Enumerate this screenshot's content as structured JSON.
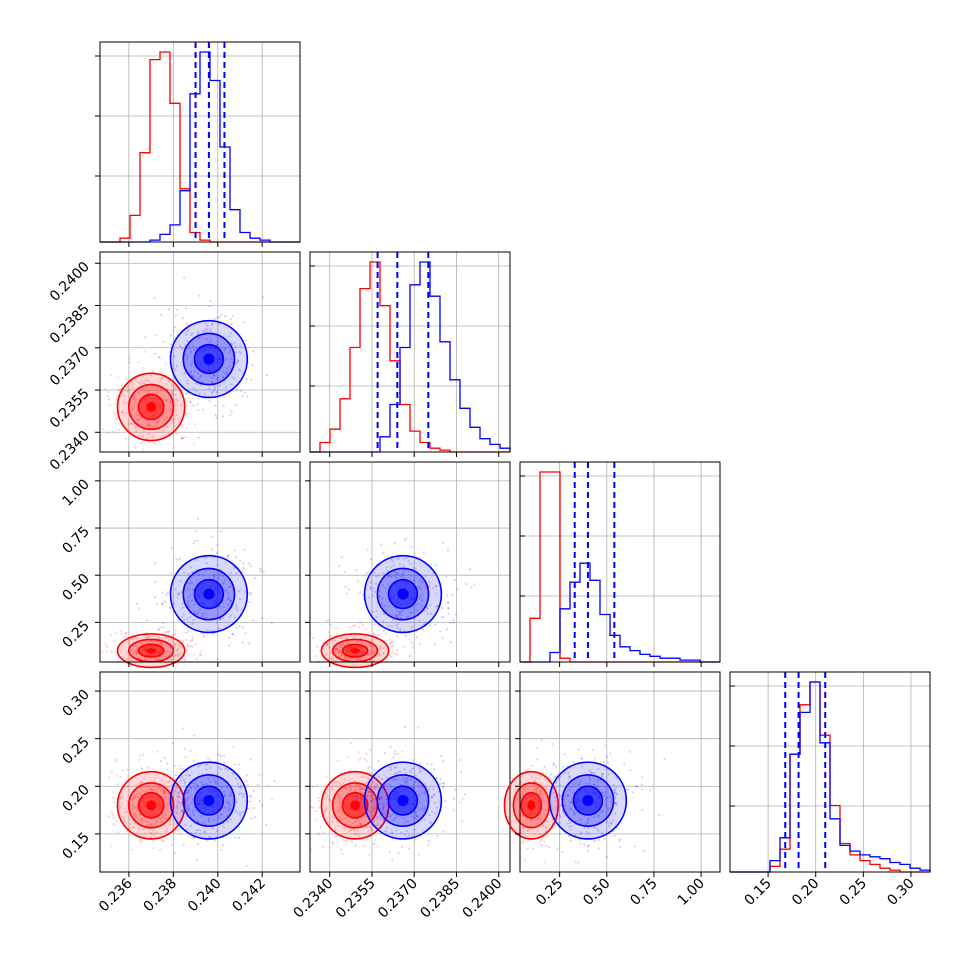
{
  "colors": {
    "series_a": "#ff0000",
    "series_b": "#0000ff",
    "grid": "#b0b0b0",
    "axis": "#000000"
  },
  "chart_data": {
    "type": "corner",
    "grid": true,
    "parameters": [
      {
        "ticks": [
          "0.236",
          "0.238",
          "0.240",
          "0.242"
        ],
        "tick_values": [
          0.236,
          0.238,
          0.24,
          0.242
        ],
        "range": [
          0.2347,
          0.2437
        ]
      },
      {
        "ticks": [
          "0.2340",
          "0.2355",
          "0.2370",
          "0.2385",
          "0.2400"
        ],
        "tick_values": [
          0.234,
          0.2355,
          0.237,
          0.2385,
          0.24
        ],
        "range": [
          0.2333,
          0.2404
        ]
      },
      {
        "ticks": [
          "0.25",
          "0.50",
          "0.75",
          "1.00"
        ],
        "tick_values": [
          0.25,
          0.5,
          0.75,
          1.0
        ],
        "range": [
          0.04,
          1.1
        ]
      },
      {
        "ticks": [
          "0.15",
          "0.20",
          "0.25",
          "0.30"
        ],
        "tick_values": [
          0.15,
          0.2,
          0.25,
          0.3
        ],
        "range": [
          0.11,
          0.32
        ]
      }
    ],
    "series": [
      {
        "color": "#ff0000",
        "centers": [
          0.237,
          0.2349,
          0.1,
          0.18
        ],
        "histograms": [
          [
            0,
            0,
            0.02,
            0.14,
            0.47,
            0.96,
            1.0,
            0.73,
            0.28,
            0.05,
            0.01,
            0,
            0,
            0,
            0,
            0,
            0,
            0,
            0,
            0
          ],
          [
            0,
            0.05,
            0.12,
            0.28,
            0.55,
            0.86,
            1.0,
            0.77,
            0.48,
            0.25,
            0.11,
            0.05,
            0.02,
            0.01,
            0,
            0,
            0,
            0,
            0,
            0
          ],
          [
            0,
            0.23,
            1.0,
            1.0,
            0.02,
            0,
            0,
            0,
            0,
            0,
            0,
            0,
            0,
            0,
            0,
            0,
            0,
            0,
            0,
            0
          ],
          [
            0,
            0,
            0,
            0,
            0.03,
            0.12,
            0.62,
            0.88,
            1.0,
            0.72,
            0.35,
            0.15,
            0.09,
            0.06,
            0.04,
            0.02,
            0.01,
            0,
            0,
            0
          ]
        ]
      },
      {
        "color": "#0000ff",
        "centers": [
          0.2396,
          0.2366,
          0.4,
          0.185
        ],
        "quantiles": [
          [
            0.239,
            0.2396,
            0.2403
          ],
          [
            0.2357,
            0.2364,
            0.2375
          ],
          [
            0.33,
            0.4,
            0.54
          ],
          [
            0.168,
            0.182,
            0.21
          ]
        ],
        "histograms": [
          [
            0,
            0,
            0,
            0,
            0,
            0.01,
            0.04,
            0.09,
            0.27,
            0.78,
            1.0,
            0.85,
            0.5,
            0.17,
            0.05,
            0.02,
            0.01,
            0,
            0,
            0
          ],
          [
            0,
            0,
            0,
            0,
            0,
            0,
            0,
            0.08,
            0.25,
            0.55,
            0.88,
            1.0,
            0.82,
            0.58,
            0.38,
            0.23,
            0.13,
            0.07,
            0.04,
            0.02
          ],
          [
            0,
            0,
            0,
            0.05,
            0.28,
            0.42,
            0.52,
            0.43,
            0.25,
            0.14,
            0.08,
            0.06,
            0.04,
            0.03,
            0.02,
            0.02,
            0.01,
            0.01,
            0,
            0
          ],
          [
            0,
            0,
            0,
            0,
            0.06,
            0.18,
            0.62,
            0.84,
            1.0,
            0.68,
            0.28,
            0.14,
            0.11,
            0.09,
            0.08,
            0.07,
            0.05,
            0.04,
            0.02,
            0.01
          ]
        ]
      }
    ]
  }
}
